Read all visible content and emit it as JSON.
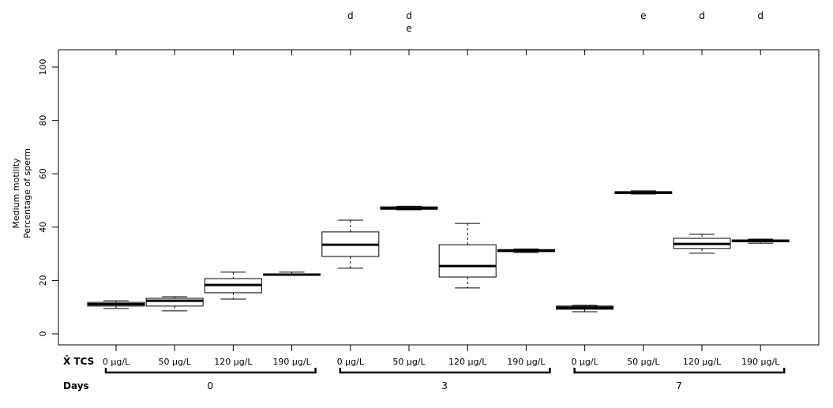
{
  "chart_data": {
    "type": "box",
    "ylabel_lines": [
      "Medium motility",
      "Percentage of sperm"
    ],
    "ylim": [
      0,
      100
    ],
    "yticks": [
      0,
      20,
      40,
      60,
      80,
      100
    ],
    "grid": false,
    "x_row_label": "X̄ TCS",
    "group_row_label": "Days",
    "groups": [
      {
        "label": "0",
        "categories": [
          "0 μg/L",
          "50 μg/L",
          "120 μg/L",
          "190 μg/L"
        ]
      },
      {
        "label": "3",
        "categories": [
          "0 μg/L",
          "50 μg/L",
          "120 μg/L",
          "190 μg/L"
        ]
      },
      {
        "label": "7",
        "categories": [
          "0 μg/L",
          "50 μg/L",
          "120 μg/L",
          "190 μg/L"
        ]
      }
    ],
    "boxes": [
      {
        "min": 9.5,
        "q1": 10.4,
        "median": 11.1,
        "q3": 11.8,
        "max": 12.4,
        "letters": ""
      },
      {
        "min": 8.6,
        "q1": 10.4,
        "median": 12.4,
        "q3": 13.3,
        "max": 13.9,
        "letters": ""
      },
      {
        "min": 13.0,
        "q1": 15.4,
        "median": 18.3,
        "q3": 20.7,
        "max": 23.1,
        "letters": ""
      },
      {
        "min": 22.0,
        "q1": 22.0,
        "median": 22.2,
        "q3": 22.4,
        "max": 23.1,
        "letters": ""
      },
      {
        "min": 24.6,
        "q1": 29.0,
        "median": 33.4,
        "q3": 38.2,
        "max": 42.6,
        "letters": "d"
      },
      {
        "min": 46.5,
        "q1": 46.7,
        "median": 47.0,
        "q3": 47.6,
        "max": 47.8,
        "letters": "d\ne"
      },
      {
        "min": 17.2,
        "q1": 21.3,
        "median": 25.4,
        "q3": 33.4,
        "max": 41.4,
        "letters": ""
      },
      {
        "min": 30.5,
        "q1": 30.8,
        "median": 31.2,
        "q3": 31.6,
        "max": 31.8,
        "letters": ""
      },
      {
        "min": 8.3,
        "q1": 9.2,
        "median": 9.8,
        "q3": 10.4,
        "max": 10.7,
        "letters": ""
      },
      {
        "min": 52.4,
        "q1": 52.6,
        "median": 52.9,
        "q3": 53.3,
        "max": 53.6,
        "letters": "e"
      },
      {
        "min": 30.2,
        "q1": 32.0,
        "median": 33.7,
        "q3": 35.8,
        "max": 37.3,
        "letters": "d"
      },
      {
        "min": 34.0,
        "q1": 34.5,
        "median": 34.9,
        "q3": 35.2,
        "max": 35.5,
        "letters": "d"
      }
    ]
  }
}
